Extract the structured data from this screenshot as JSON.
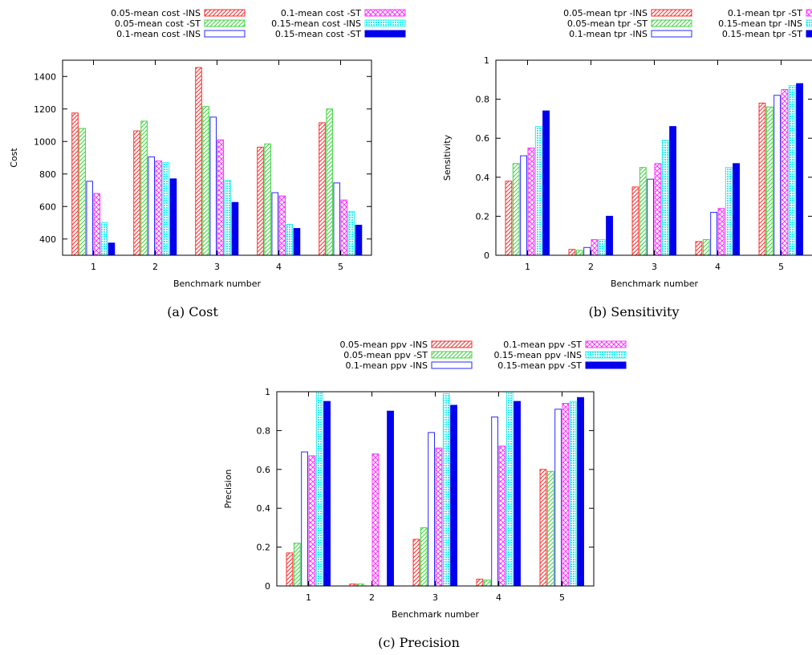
{
  "chart_data": [
    {
      "type": "bar",
      "caption": "(a)  Cost",
      "xlabel": "Benchmark number",
      "ylabel": "Cost",
      "categories": [
        "1",
        "2",
        "3",
        "4",
        "5"
      ],
      "ylim": [
        300,
        1500
      ],
      "yticks": [
        "400",
        "600",
        "800",
        "1000",
        "1200",
        "1400"
      ],
      "series": [
        {
          "name": "0.05-mean cost -INS",
          "values": [
            1175,
            1065,
            1455,
            965,
            1115
          ]
        },
        {
          "name": "0.05-mean cost -ST",
          "values": [
            1080,
            1125,
            1215,
            985,
            1200
          ]
        },
        {
          "name": "0.1-mean cost -INS",
          "values": [
            755,
            905,
            1150,
            685,
            745
          ]
        },
        {
          "name": "0.1-mean cost -ST",
          "values": [
            680,
            880,
            1010,
            665,
            640
          ]
        },
        {
          "name": "0.15-mean cost -INS",
          "values": [
            500,
            870,
            760,
            490,
            570
          ]
        },
        {
          "name": "0.15-mean cost -ST",
          "values": [
            375,
            770,
            625,
            465,
            485
          ]
        }
      ]
    },
    {
      "type": "bar",
      "caption": "(b)  Sensitivity",
      "xlabel": "Benchmark number",
      "ylabel": "Sensitivity",
      "categories": [
        "1",
        "2",
        "3",
        "4",
        "5"
      ],
      "ylim": [
        0,
        1
      ],
      "yticks": [
        "0",
        "0.2",
        "0.4",
        "0.6",
        "0.8",
        "1"
      ],
      "series": [
        {
          "name": "0.05-mean tpr -INS",
          "values": [
            0.38,
            0.03,
            0.35,
            0.07,
            0.78
          ]
        },
        {
          "name": "0.05-mean tpr -ST",
          "values": [
            0.47,
            0.025,
            0.45,
            0.08,
            0.76
          ]
        },
        {
          "name": "0.1-mean tpr -INS",
          "values": [
            0.51,
            0.04,
            0.39,
            0.22,
            0.82
          ]
        },
        {
          "name": "0.1-mean tpr -ST",
          "values": [
            0.55,
            0.08,
            0.47,
            0.24,
            0.85
          ]
        },
        {
          "name": "0.15-mean tpr -INS",
          "values": [
            0.66,
            0.08,
            0.59,
            0.45,
            0.87
          ]
        },
        {
          "name": "0.15-mean tpr -ST",
          "values": [
            0.74,
            0.2,
            0.66,
            0.47,
            0.88
          ]
        }
      ]
    },
    {
      "type": "bar",
      "caption": "(c)  Precision",
      "xlabel": "Benchmark number",
      "ylabel": "Precision",
      "categories": [
        "1",
        "2",
        "3",
        "4",
        "5"
      ],
      "ylim": [
        0,
        1
      ],
      "yticks": [
        "0",
        "0.2",
        "0.4",
        "0.6",
        "0.8",
        "1"
      ],
      "series": [
        {
          "name": "0.05-mean ppv -INS",
          "values": [
            0.17,
            0.01,
            0.24,
            0.035,
            0.6
          ]
        },
        {
          "name": "0.05-mean ppv -ST",
          "values": [
            0.22,
            0.01,
            0.3,
            0.03,
            0.59
          ]
        },
        {
          "name": "0.1-mean ppv -INS",
          "values": [
            0.69,
            0,
            0.79,
            0.87,
            0.91
          ]
        },
        {
          "name": "0.1-mean ppv -ST",
          "values": [
            0.67,
            0.68,
            0.71,
            0.72,
            0.94
          ]
        },
        {
          "name": "0.15-mean ppv -INS",
          "values": [
            1.0,
            0,
            0.99,
            1.0,
            0.95
          ]
        },
        {
          "name": "0.15-mean ppv -ST",
          "values": [
            0.95,
            0.9,
            0.93,
            0.95,
            0.97
          ]
        }
      ]
    }
  ],
  "colors": {
    "series": [
      "#ff2a2a",
      "#3fd43f",
      "#2a2aff",
      "#ff33ff",
      "#33eeee",
      "#0000ee"
    ],
    "axis": "#000000"
  }
}
